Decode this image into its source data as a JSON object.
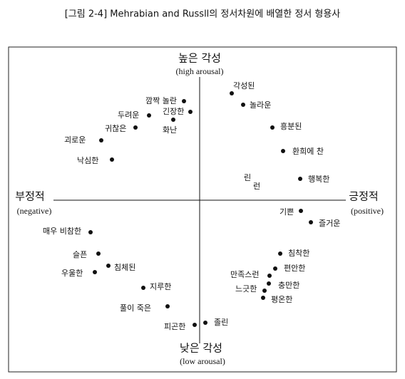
{
  "title": "[그림 2-4] Mehrabian and Russll의 정서차원에 배열한 정서 형용사",
  "axes": {
    "top": "높은 각성",
    "top_en": "(high arousal)",
    "bottom": "낮은 각성",
    "bottom_en": "(low arousal)",
    "left": "부정적",
    "left_en": "(negative)",
    "right": "긍정적",
    "right_en": "(positive)"
  },
  "nodes": [
    {
      "label": "깜짝 놀란"
    },
    {
      "label": "긴장한"
    },
    {
      "label": "두려운"
    },
    {
      "label": "화난"
    },
    {
      "label": "귀찮은"
    },
    {
      "label": "괴로운"
    },
    {
      "label": "낙심한"
    },
    {
      "label": "각성된"
    },
    {
      "label": "놀라운"
    },
    {
      "label": "흥분된"
    },
    {
      "label": "환희에 찬"
    },
    {
      "label": "행복한"
    },
    {
      "label": "린"
    },
    {
      "label": "런"
    },
    {
      "label": "기쁜"
    },
    {
      "label": "즐거운"
    },
    {
      "label": "매우 비참한"
    },
    {
      "label": "슬픈"
    },
    {
      "label": "침체된"
    },
    {
      "label": "우울한"
    },
    {
      "label": "지루한"
    },
    {
      "label": "풀이 죽은"
    },
    {
      "label": "피곤한"
    },
    {
      "label": "졸린"
    },
    {
      "label": "침착한"
    },
    {
      "label": "편안한"
    },
    {
      "label": "만족스런"
    },
    {
      "label": "느긋한"
    },
    {
      "label": "충만한"
    },
    {
      "label": "평온한"
    }
  ]
}
